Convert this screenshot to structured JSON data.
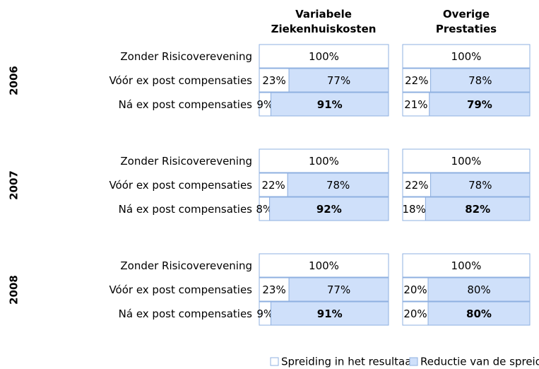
{
  "chart_data": [
    {
      "type": "bar",
      "orientation": "horizontal",
      "stacked": true,
      "title": "Variabele Ziekenhuiskosten",
      "groups": [
        "2006",
        "2007",
        "2008"
      ],
      "categories": [
        "Zonder Risicoverevening",
        "Vóór ex post compensaties",
        "Ná ex post compensaties",
        "Zonder Risicoverevening",
        "Vóór ex post compensaties",
        "Ná ex post compensaties",
        "Zonder Risicoverevening",
        "Vóór ex post compensaties",
        "Ná ex post compensaties"
      ],
      "xlim": [
        0,
        100
      ],
      "series": [
        {
          "name": "Spreiding in het resultaat",
          "color": "#ffffff",
          "values": [
            100,
            23,
            9,
            100,
            22,
            8,
            100,
            23,
            9
          ],
          "value_labels": [
            "100%",
            "23%",
            "9%",
            "100%",
            "22%",
            "8%",
            "100%",
            "23%",
            "9%"
          ]
        },
        {
          "name": "Reductie van de spreiding",
          "color": "#cfe0fa",
          "values": [
            null,
            77,
            91,
            null,
            78,
            92,
            null,
            77,
            91
          ],
          "value_labels": [
            null,
            "77%",
            "91%",
            null,
            "78%",
            "92%",
            null,
            "77%",
            "91%"
          ]
        }
      ]
    },
    {
      "type": "bar",
      "orientation": "horizontal",
      "stacked": true,
      "title": "Overige Prestaties",
      "xlim": [
        0,
        100
      ],
      "series": [
        {
          "color": "#ffffff",
          "values": [
            100,
            22,
            21,
            100,
            22,
            18,
            100,
            20,
            20
          ],
          "value_labels": [
            "100%",
            "22%",
            "21%",
            "100%",
            "22%",
            "18%",
            "100%",
            "20%",
            "20%"
          ]
        },
        {
          "color": "#cfe0fa",
          "values": [
            null,
            78,
            79,
            null,
            78,
            82,
            null,
            80,
            80
          ],
          "value_labels": [
            null,
            "78%",
            "79%",
            null,
            "78%",
            "82%",
            null,
            "80%",
            "80%"
          ]
        }
      ]
    }
  ]
}
